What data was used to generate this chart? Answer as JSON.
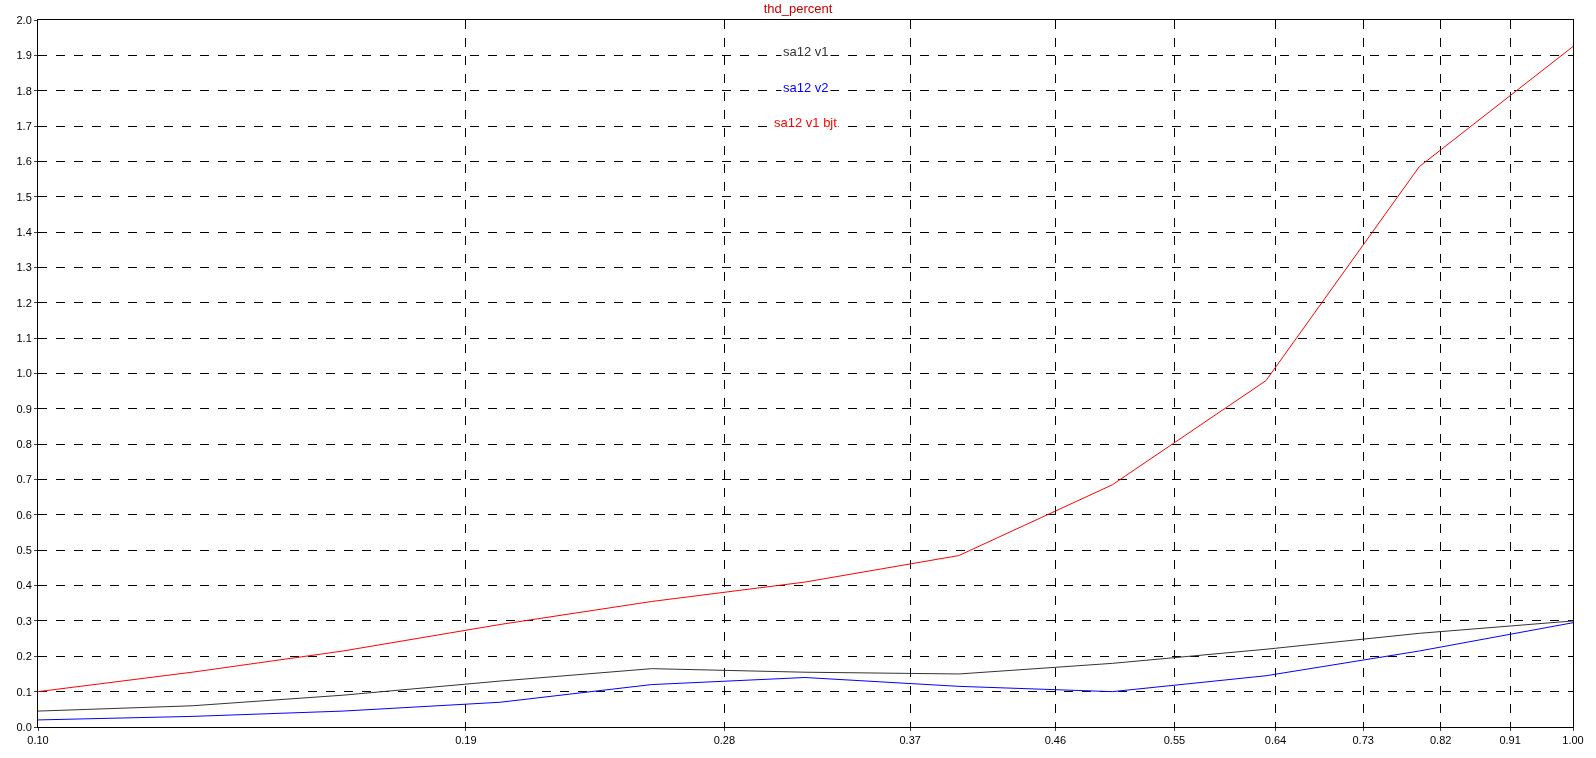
{
  "chart_data": {
    "type": "line",
    "title": "thd_percent",
    "log": "x",
    "grid": true,
    "marker": "none",
    "line_style": "solid",
    "x": [
      0.1,
      0.126,
      0.158,
      0.2,
      0.251,
      0.316,
      0.398,
      0.501,
      0.631,
      0.794,
      1.0
    ],
    "series": [
      {
        "name": "sa12 v1",
        "color": "#333333",
        "values": [
          0.045,
          0.06,
          0.09,
          0.13,
          0.165,
          0.155,
          0.15,
          0.18,
          0.22,
          0.265,
          0.3
        ]
      },
      {
        "name": "sa12 v2",
        "color": "#0000ff",
        "values": [
          0.02,
          0.03,
          0.045,
          0.07,
          0.12,
          0.14,
          0.115,
          0.1,
          0.145,
          0.215,
          0.295
        ]
      },
      {
        "name": "sa12 v1 bjt",
        "color": "#ff0000",
        "values": [
          0.1,
          0.155,
          0.215,
          0.29,
          0.355,
          0.41,
          0.485,
          0.685,
          0.98,
          1.585,
          1.925
        ]
      }
    ],
    "xlim": [
      0.1,
      1.0
    ],
    "xticks": [
      {
        "value": 0.1,
        "label": "0.10"
      },
      0.19,
      0.28,
      0.37,
      0.46,
      0.55,
      0.64,
      0.73,
      0.82,
      0.91,
      {
        "value": 1.0,
        "label": "1.00"
      }
    ],
    "ylim": [
      0,
      2.0
    ],
    "yticks": [
      {
        "value": 0,
        "label": "0.0"
      },
      0.1,
      0.2,
      0.3,
      0.4,
      0.5,
      0.6,
      0.7,
      0.8,
      0.9,
      {
        "value": 1.0,
        "label": "1.0"
      },
      1.1,
      1.2,
      1.3,
      1.4,
      1.5,
      1.6,
      1.7,
      1.8,
      1.9,
      {
        "value": 2.0,
        "label": "2.0"
      }
    ]
  }
}
